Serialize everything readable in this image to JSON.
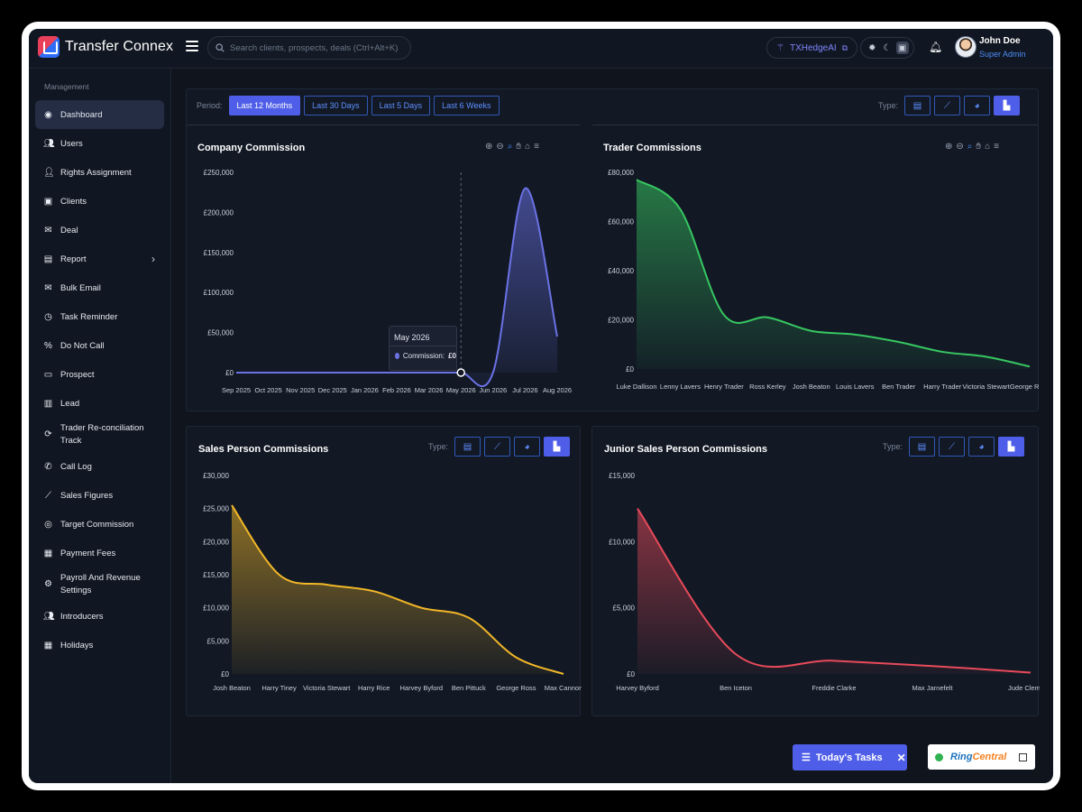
{
  "app": {
    "title": "Transfer Connex"
  },
  "search": {
    "placeholder": "Search clients, prospects, deals (Ctrl+Alt+K)"
  },
  "header": {
    "ai_label": "TXHedgeAI",
    "user_name": "John Doe",
    "user_role": "Super Admin"
  },
  "sidebar": {
    "heading": "Management",
    "items": [
      {
        "label": "Dashboard",
        "icon": "dashboard-icon"
      },
      {
        "label": "Users",
        "icon": "users-icon"
      },
      {
        "label": "Rights Assignment",
        "icon": "user-key-icon"
      },
      {
        "label": "Clients",
        "icon": "clients-icon"
      },
      {
        "label": "Deal",
        "icon": "handshake-icon"
      },
      {
        "label": "Report",
        "icon": "report-icon"
      },
      {
        "label": "Bulk Email",
        "icon": "bulk-email-icon"
      },
      {
        "label": "Task Reminder",
        "icon": "clock-icon"
      },
      {
        "label": "Do Not Call",
        "icon": "no-call-icon"
      },
      {
        "label": "Prospect",
        "icon": "id-card-icon"
      },
      {
        "label": "Lead",
        "icon": "lead-icon"
      },
      {
        "label": "Trader Re-conciliation Track",
        "icon": "sync-icon"
      },
      {
        "label": "Call Log",
        "icon": "phone-icon"
      },
      {
        "label": "Sales Figures",
        "icon": "chart-line-icon"
      },
      {
        "label": "Target Commission",
        "icon": "target-icon"
      },
      {
        "label": "Payment Fees",
        "icon": "payment-icon"
      },
      {
        "label": "Payroll And Revenue Settings",
        "icon": "gears-icon"
      },
      {
        "label": "Introducers",
        "icon": "introducers-icon"
      },
      {
        "label": "Holidays",
        "icon": "calendar-icon"
      }
    ]
  },
  "filters": {
    "period_label": "Period:",
    "periods": [
      "Last 12 Months",
      "Last 30 Days",
      "Last 5 Days",
      "Last 6 Weeks"
    ],
    "type_label": "Type:"
  },
  "tooltip": {
    "title": "May 2026",
    "label": "Commission:",
    "value": "£0"
  },
  "footer": {
    "tasks_label": "Today's Tasks"
  },
  "chart_data": [
    {
      "type": "area",
      "title": "Company Commission",
      "categories": [
        "Sep 2025",
        "Oct 2025",
        "Nov 2025",
        "Dec 2025",
        "Jan 2026",
        "Feb 2026",
        "Mar 2026",
        "May 2026",
        "Jun 2026",
        "Jul 2026",
        "Aug 2026"
      ],
      "values": [
        0,
        0,
        0,
        0,
        0,
        0,
        0,
        0,
        0,
        230000,
        45000
      ],
      "yticks": [
        "£0",
        "£50,000",
        "£100,000",
        "£150,000",
        "£200,000",
        "£250,000"
      ],
      "ylim": [
        0,
        250000
      ],
      "color": "#6b72e6"
    },
    {
      "type": "area",
      "title": "Trader Commissions",
      "categories": [
        "Luke Dallison",
        "Lenny Lavers",
        "Henry Trader",
        "Ross Kerley",
        "Josh Beaton",
        "Louis Lavers",
        "Ben Trader",
        "Harry Trader",
        "Victoria Stewart",
        "George Ross"
      ],
      "values": [
        77000,
        65000,
        22000,
        21000,
        15500,
        14000,
        11000,
        7000,
        5000,
        1000
      ],
      "yticks": [
        "£0",
        "£20,000",
        "£40,000",
        "£60,000",
        "£80,000"
      ],
      "ylim": [
        0,
        80000
      ],
      "color": "#37c761"
    },
    {
      "type": "area",
      "title": "Sales Person Commissions",
      "categories": [
        "Josh Beaton",
        "Harry Tiney",
        "Victoria Stewart",
        "Harry Rice",
        "Harvey Byford",
        "Ben Pittuck",
        "George Ross",
        "Max Cannon"
      ],
      "values": [
        25500,
        15000,
        13500,
        12500,
        10000,
        8500,
        2500,
        0
      ],
      "yticks": [
        "£0",
        "£5,000",
        "£10,000",
        "£15,000",
        "£20,000",
        "£25,000",
        "£30,000"
      ],
      "ylim": [
        0,
        30000
      ],
      "color": "#f2b728"
    },
    {
      "type": "area",
      "title": "Junior Sales Person Commissions",
      "categories": [
        "Harvey Byford",
        "Ben Iceton",
        "Freddie Clarke",
        "Max Jarnefelt",
        "Jude Clements"
      ],
      "values": [
        12500,
        1500,
        1000,
        600,
        100
      ],
      "yticks": [
        "£0",
        "£5,000",
        "£10,000",
        "£15,000"
      ],
      "ylim": [
        0,
        15000
      ],
      "color": "#e84a5a"
    }
  ]
}
